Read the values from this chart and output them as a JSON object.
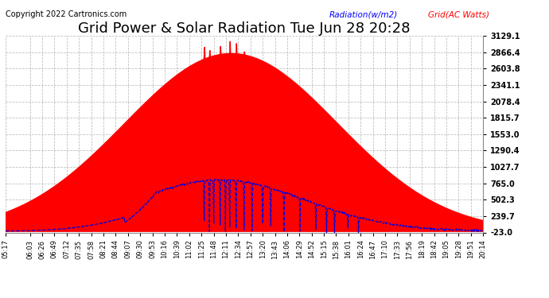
{
  "title": "Grid Power & Solar Radiation Tue Jun 28 20:28",
  "copyright": "Copyright 2022 Cartronics.com",
  "legend_radiation": "Radiation(w/m2)",
  "legend_grid": "Grid(AC Watts)",
  "y_min": -23.0,
  "y_max": 3129.1,
  "yticks": [
    -23.0,
    239.7,
    502.3,
    765.0,
    1027.7,
    1290.4,
    1553.0,
    1815.7,
    2078.4,
    2341.1,
    2603.8,
    2866.4,
    3129.1
  ],
  "bg_color": "#ffffff",
  "grid_color": "#aaaaaa",
  "radiation_color": "#ff0000",
  "grid_line_color": "#0000dd",
  "title_fontsize": 13,
  "copyright_fontsize": 7,
  "x_label_fontsize": 6,
  "tick_labels": [
    "05:17",
    "06:03",
    "06:26",
    "06:49",
    "07:12",
    "07:35",
    "07:58",
    "08:21",
    "08:44",
    "09:07",
    "09:30",
    "09:53",
    "10:16",
    "10:39",
    "11:02",
    "11:25",
    "11:48",
    "12:11",
    "12:34",
    "12:57",
    "13:20",
    "13:43",
    "14:06",
    "14:29",
    "14:52",
    "15:15",
    "15:38",
    "16:01",
    "16:24",
    "16:47",
    "17:10",
    "17:33",
    "17:56",
    "18:19",
    "18:42",
    "19:05",
    "19:28",
    "19:51",
    "20:14"
  ]
}
